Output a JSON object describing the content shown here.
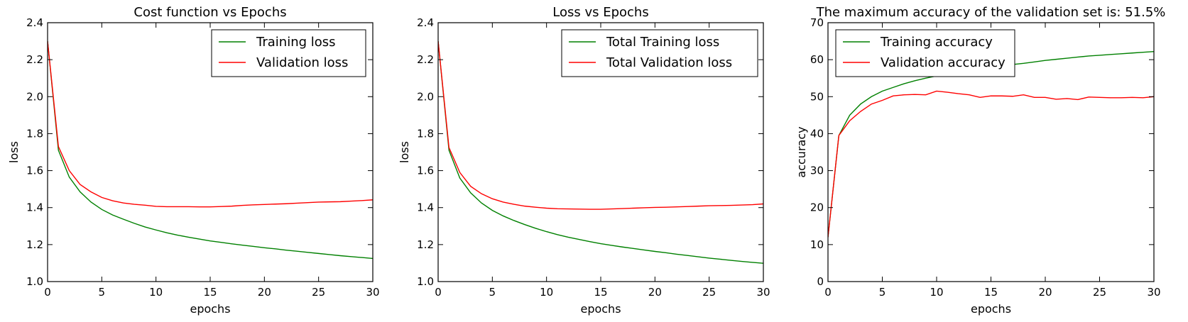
{
  "chart_data": [
    {
      "type": "line",
      "title": "Cost function vs Epochs",
      "xlabel": "epochs",
      "ylabel": "loss",
      "xlim": [
        0,
        30
      ],
      "ylim": [
        1.0,
        2.4
      ],
      "xticks": [
        "0",
        "5",
        "10",
        "15",
        "20",
        "25",
        "30"
      ],
      "yticks": [
        "1.0",
        "1.2",
        "1.4",
        "1.6",
        "1.8",
        "2.0",
        "2.2",
        "2.4"
      ],
      "legend_position": "top-right",
      "grid": false,
      "x": [
        0,
        1,
        2,
        3,
        4,
        5,
        6,
        7,
        8,
        9,
        10,
        11,
        12,
        13,
        14,
        15,
        16,
        17,
        18,
        19,
        20,
        21,
        22,
        23,
        24,
        25,
        26,
        27,
        28,
        29,
        30
      ],
      "series": [
        {
          "name": "Training loss",
          "color": "#008000",
          "values": [
            2.3,
            1.71,
            1.565,
            1.485,
            1.43,
            1.39,
            1.36,
            1.337,
            1.315,
            1.295,
            1.279,
            1.264,
            1.251,
            1.24,
            1.23,
            1.22,
            1.212,
            1.204,
            1.197,
            1.19,
            1.183,
            1.177,
            1.17,
            1.164,
            1.158,
            1.152,
            1.146,
            1.14,
            1.135,
            1.13,
            1.125
          ]
        },
        {
          "name": "Validation loss",
          "color": "#ff0000",
          "values": [
            2.3,
            1.73,
            1.6,
            1.525,
            1.485,
            1.455,
            1.437,
            1.425,
            1.418,
            1.413,
            1.407,
            1.405,
            1.405,
            1.405,
            1.404,
            1.404,
            1.406,
            1.408,
            1.412,
            1.415,
            1.417,
            1.419,
            1.421,
            1.424,
            1.427,
            1.43,
            1.431,
            1.432,
            1.435,
            1.438,
            1.442
          ]
        }
      ]
    },
    {
      "type": "line",
      "title": "Loss vs Epochs",
      "xlabel": "epochs",
      "ylabel": "loss",
      "xlim": [
        0,
        30
      ],
      "ylim": [
        1.0,
        2.4
      ],
      "xticks": [
        "0",
        "5",
        "10",
        "15",
        "20",
        "25",
        "30"
      ],
      "yticks": [
        "1.0",
        "1.2",
        "1.4",
        "1.6",
        "1.8",
        "2.0",
        "2.2",
        "2.4"
      ],
      "legend_position": "top-right",
      "grid": false,
      "x": [
        0,
        1,
        2,
        3,
        4,
        5,
        6,
        7,
        8,
        9,
        10,
        11,
        12,
        13,
        14,
        15,
        16,
        17,
        18,
        19,
        20,
        21,
        22,
        23,
        24,
        25,
        26,
        27,
        28,
        29,
        30
      ],
      "series": [
        {
          "name": "Total Training loss",
          "color": "#008000",
          "values": [
            2.3,
            1.71,
            1.56,
            1.48,
            1.425,
            1.385,
            1.355,
            1.33,
            1.308,
            1.288,
            1.27,
            1.254,
            1.24,
            1.228,
            1.216,
            1.205,
            1.196,
            1.187,
            1.179,
            1.171,
            1.163,
            1.156,
            1.148,
            1.141,
            1.134,
            1.127,
            1.121,
            1.115,
            1.109,
            1.104,
            1.099
          ]
        },
        {
          "name": "Total Validation loss",
          "color": "#ff0000",
          "values": [
            2.3,
            1.725,
            1.59,
            1.515,
            1.475,
            1.448,
            1.43,
            1.418,
            1.408,
            1.402,
            1.397,
            1.394,
            1.393,
            1.392,
            1.391,
            1.391,
            1.393,
            1.395,
            1.397,
            1.399,
            1.401,
            1.402,
            1.404,
            1.406,
            1.408,
            1.41,
            1.411,
            1.412,
            1.414,
            1.416,
            1.42
          ]
        }
      ]
    },
    {
      "type": "line",
      "title": "The maximum accuracy of the validation set is: 51.5%",
      "xlabel": "epochs",
      "ylabel": "accuracy",
      "xlim": [
        0,
        30
      ],
      "ylim": [
        0,
        70
      ],
      "xticks": [
        "0",
        "5",
        "10",
        "15",
        "20",
        "25",
        "30"
      ],
      "yticks": [
        "0",
        "10",
        "20",
        "30",
        "40",
        "50",
        "60",
        "70"
      ],
      "legend_position": "top-left",
      "grid": false,
      "x": [
        0,
        1,
        2,
        3,
        4,
        5,
        6,
        7,
        8,
        9,
        10,
        11,
        12,
        13,
        14,
        15,
        16,
        17,
        18,
        19,
        20,
        21,
        22,
        23,
        24,
        25,
        26,
        27,
        28,
        29,
        30
      ],
      "series": [
        {
          "name": "Training accuracy",
          "color": "#008000",
          "values": [
            12,
            39.5,
            45,
            48,
            50,
            51.5,
            52.5,
            53.5,
            54.3,
            55,
            55.6,
            56.2,
            56.7,
            57.2,
            57.6,
            58,
            58.4,
            58.7,
            59,
            59.4,
            59.8,
            60.1,
            60.4,
            60.7,
            61,
            61.2,
            61.4,
            61.6,
            61.8,
            62,
            62.2
          ]
        },
        {
          "name": "Validation accuracy",
          "color": "#ff0000",
          "values": [
            12,
            39.5,
            43.5,
            46,
            48,
            49,
            50.2,
            50.5,
            50.6,
            50.5,
            51.5,
            51.2,
            50.8,
            50.5,
            49.8,
            50.2,
            50.2,
            50.1,
            50.5,
            49.8,
            49.8,
            49.3,
            49.5,
            49.2,
            49.9,
            49.8,
            49.7,
            49.7,
            49.8,
            49.7,
            50
          ]
        }
      ]
    }
  ]
}
